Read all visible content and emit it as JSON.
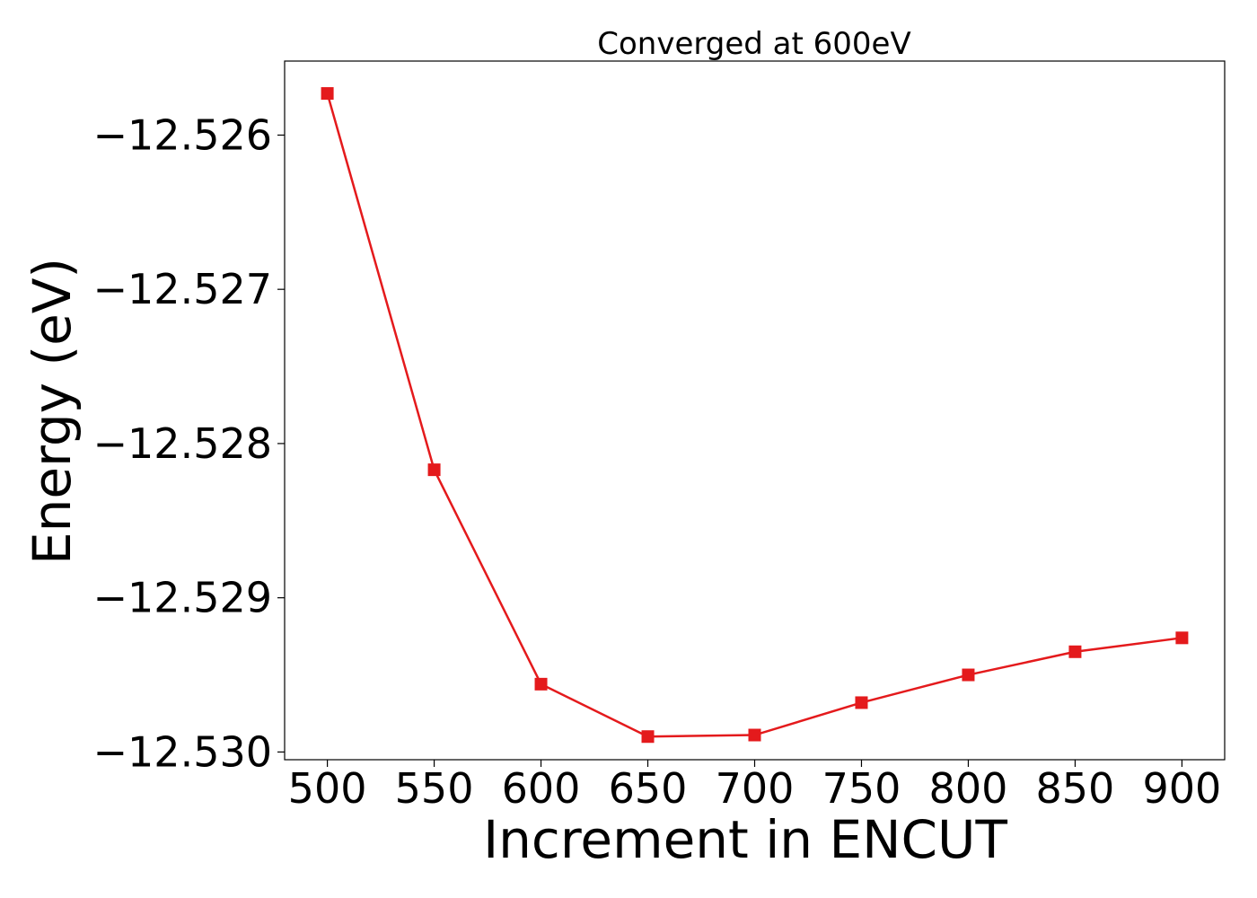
{
  "chart_data": {
    "type": "line",
    "title": "Converged at 600eV",
    "xlabel": "Increment in ENCUT",
    "ylabel": "Energy (eV)",
    "x": [
      500,
      550,
      600,
      650,
      700,
      750,
      800,
      850,
      900
    ],
    "series": [
      {
        "values": [
          -12.52573,
          -12.52817,
          -12.52956,
          -12.5299,
          -12.52989,
          -12.52968,
          -12.5295,
          -12.52935,
          -12.52926
        ]
      }
    ],
    "xticks": [
      500,
      550,
      600,
      650,
      700,
      750,
      800,
      850,
      900
    ],
    "xtick_labels": [
      "500",
      "550",
      "600",
      "650",
      "700",
      "750",
      "800",
      "850",
      "900"
    ],
    "yticks": [
      -12.526,
      -12.527,
      -12.528,
      -12.529,
      -12.53
    ],
    "ytick_labels": [
      "−12.526",
      "−12.527",
      "−12.528",
      "−12.529",
      "−12.530"
    ],
    "xlim": [
      480,
      920
    ],
    "ylim": [
      -12.53005,
      -12.52552
    ],
    "grid": false,
    "legend": "none",
    "line_color": "#e41a1c",
    "marker": "square"
  }
}
